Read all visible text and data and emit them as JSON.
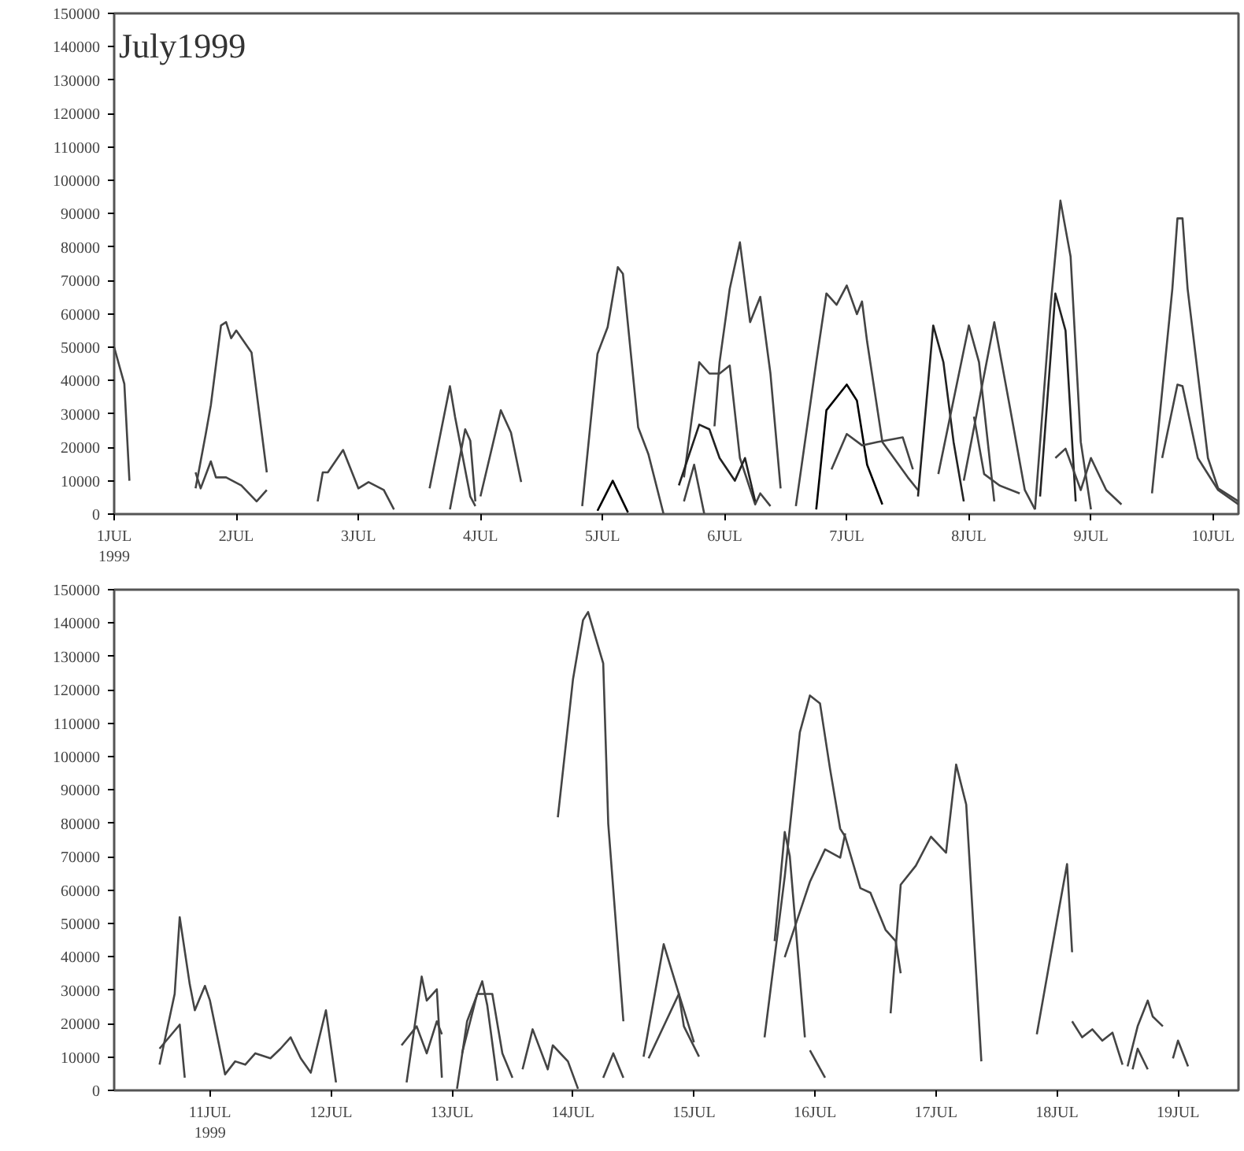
{
  "chart_data": [
    {
      "type": "line",
      "title": "July1999",
      "xlim": [
        "1999-07-01T00:00",
        "1999-07-10T05:00"
      ],
      "ylim": [
        0,
        150000
      ],
      "xticks": [
        {
          "value": "1999-07-01",
          "label": "1JUL\n1999"
        },
        {
          "value": "1999-07-02",
          "label": "2JUL"
        },
        {
          "value": "1999-07-03",
          "label": "3JUL"
        },
        {
          "value": "1999-07-04",
          "label": "4JUL"
        },
        {
          "value": "1999-07-05",
          "label": "5JUL"
        },
        {
          "value": "1999-07-06",
          "label": "6JUL"
        },
        {
          "value": "1999-07-07",
          "label": "7JUL"
        },
        {
          "value": "1999-07-08",
          "label": "8JUL"
        },
        {
          "value": "1999-07-09",
          "label": "9JUL"
        },
        {
          "value": "1999-07-10",
          "label": "10JUL"
        }
      ],
      "yticks": [
        0,
        10000,
        20000,
        30000,
        40000,
        50000,
        60000,
        70000,
        80000,
        90000,
        100000,
        110000,
        120000,
        130000,
        140000,
        150000
      ],
      "grid": false,
      "marker": "none",
      "line_style": "solid",
      "series": [
        {
          "color": "#444444",
          "x": [
            "1999-07-01T00:00",
            "1999-07-01T02:00",
            "1999-07-01T03:00"
          ],
          "values": [
            50000,
            39000,
            10000
          ]
        },
        {
          "color": "#444444",
          "x": [
            "1999-07-01T16:00",
            "1999-07-01T18:00",
            "1999-07-01T19:00",
            "1999-07-01T21:00",
            "1999-07-01T22:00",
            "1999-07-01T23:00",
            "1999-07-02T00:00",
            "1999-07-02T03:00",
            "1999-07-02T06:00"
          ],
          "values": [
            7700,
            24000,
            32600,
            56500,
            57500,
            52700,
            55000,
            48400,
            12500
          ]
        },
        {
          "color": "#444444",
          "x": [
            "1999-07-01T16:00",
            "1999-07-01T17:00",
            "1999-07-01T19:00",
            "1999-07-01T20:00",
            "1999-07-01T22:00",
            "1999-07-02T01:00",
            "1999-07-02T04:00",
            "1999-07-02T06:00"
          ],
          "values": [
            12500,
            7700,
            15800,
            11000,
            11000,
            8600,
            3800,
            7200
          ]
        },
        {
          "color": "#444444",
          "x": [
            "1999-07-02T16:00",
            "1999-07-02T17:00",
            "1999-07-02T18:00",
            "1999-07-02T21:00",
            "1999-07-03T00:00",
            "1999-07-03T02:00",
            "1999-07-03T05:00",
            "1999-07-03T07:00"
          ],
          "values": [
            3800,
            12500,
            12500,
            19200,
            7700,
            9600,
            7200,
            1400
          ]
        },
        {
          "color": "#444444",
          "x": [
            "1999-07-03T14:00",
            "1999-07-03T18:00",
            "1999-07-03T19:00",
            "1999-07-03T22:00",
            "1999-07-03T23:00"
          ],
          "values": [
            7700,
            38300,
            29200,
            5300,
            2400
          ]
        },
        {
          "color": "#444444",
          "x": [
            "1999-07-03T18:00",
            "1999-07-03T21:00",
            "1999-07-03T22:00",
            "1999-07-03T23:00"
          ],
          "values": [
            1400,
            25400,
            22000,
            3800
          ]
        },
        {
          "color": "#444444",
          "x": [
            "1999-07-04T00:00",
            "1999-07-04T04:00",
            "1999-07-04T06:00",
            "1999-07-04T08:00"
          ],
          "values": [
            5300,
            31100,
            24400,
            9600
          ]
        },
        {
          "color": "#444444",
          "x": [
            "1999-07-04T20:00",
            "1999-07-04T23:00",
            "1999-07-05T01:00",
            "1999-07-05T03:00",
            "1999-07-05T04:00",
            "1999-07-05T07:00",
            "1999-07-05T09:00",
            "1999-07-05T12:00"
          ],
          "values": [
            2400,
            48000,
            56000,
            74000,
            72000,
            26000,
            18000,
            0
          ]
        },
        {
          "color": "#000000",
          "x": [
            "1999-07-04T23:00",
            "1999-07-05T02:00",
            "1999-07-05T05:00"
          ],
          "values": [
            1000,
            10000,
            500
          ]
        },
        {
          "color": "#444444",
          "x": [
            "1999-07-05T22:00",
            "1999-07-05T23:00",
            "1999-07-06T01:00",
            "1999-07-06T03:00",
            "1999-07-06T05:00",
            "1999-07-06T07:00",
            "1999-07-06T09:00",
            "1999-07-06T11:00"
          ],
          "values": [
            26300,
            45500,
            67500,
            81400,
            57500,
            65100,
            42100,
            7700
          ]
        },
        {
          "color": "#444444",
          "x": [
            "1999-07-05T16:00",
            "1999-07-05T19:00",
            "1999-07-05T21:00",
            "1999-07-05T23:00",
            "1999-07-06T01:00",
            "1999-07-06T03:00",
            "1999-07-06T06:00",
            "1999-07-06T07:00",
            "1999-07-06T09:00"
          ],
          "values": [
            11000,
            45500,
            42100,
            42100,
            44500,
            16800,
            2900,
            6200,
            2400
          ]
        },
        {
          "color": "#222222",
          "x": [
            "1999-07-05T15:00",
            "1999-07-05T19:00",
            "1999-07-05T21:00",
            "1999-07-05T23:00",
            "1999-07-06T02:00",
            "1999-07-06T04:00",
            "1999-07-06T06:00"
          ],
          "values": [
            8600,
            26800,
            25400,
            16800,
            10000,
            16800,
            3800
          ]
        },
        {
          "color": "#444444",
          "x": [
            "1999-07-05T16:00",
            "1999-07-05T18:00",
            "1999-07-05T20:00"
          ],
          "values": [
            3800,
            14800,
            0
          ]
        },
        {
          "color": "#444444",
          "x": [
            "1999-07-06T14:00",
            "1999-07-06T18:00",
            "1999-07-06T20:00",
            "1999-07-06T22:00",
            "1999-07-07T00:00",
            "1999-07-07T02:00",
            "1999-07-07T03:00",
            "1999-07-07T04:00",
            "1999-07-07T07:00",
            "1999-07-07T12:00",
            "1999-07-07T14:00"
          ],
          "values": [
            2400,
            45500,
            66100,
            62700,
            68500,
            59900,
            63700,
            51700,
            21600,
            11000,
            7200
          ]
        },
        {
          "color": "#000000",
          "x": [
            "1999-07-06T18:00",
            "1999-07-06T20:00",
            "1999-07-07T00:00",
            "1999-07-07T02:00",
            "1999-07-07T04:00",
            "1999-07-07T07:00"
          ],
          "values": [
            1400,
            31100,
            38800,
            34000,
            14800,
            2900
          ]
        },
        {
          "color": "#444444",
          "x": [
            "1999-07-06T21:00",
            "1999-07-07T00:00",
            "1999-07-07T03:00",
            "1999-07-07T06:00",
            "1999-07-07T11:00",
            "1999-07-07T13:00"
          ],
          "values": [
            13400,
            24000,
            20600,
            21600,
            23000,
            13400
          ]
        },
        {
          "color": "#222222",
          "x": [
            "1999-07-07T14:00",
            "1999-07-07T17:00",
            "1999-07-07T19:00",
            "1999-07-07T21:00",
            "1999-07-07T23:00"
          ],
          "values": [
            5300,
            56500,
            45500,
            21600,
            3800
          ]
        },
        {
          "color": "#444444",
          "x": [
            "1999-07-07T18:00",
            "1999-07-08T00:00",
            "1999-07-08T02:00",
            "1999-07-08T05:00"
          ],
          "values": [
            12000,
            56500,
            45500,
            3800
          ]
        },
        {
          "color": "#444444",
          "x": [
            "1999-07-07T23:00",
            "1999-07-08T05:00",
            "1999-07-08T08:00",
            "1999-07-08T11:00",
            "1999-07-08T13:00"
          ],
          "values": [
            10000,
            57500,
            32600,
            7200,
            1400
          ]
        },
        {
          "color": "#444444",
          "x": [
            "1999-07-08T01:00",
            "1999-07-08T03:00",
            "1999-07-08T06:00",
            "1999-07-08T10:00"
          ],
          "values": [
            29200,
            12000,
            8600,
            6200
          ]
        },
        {
          "color": "#444444",
          "x": [
            "1999-07-08T13:00",
            "1999-07-08T16:00",
            "1999-07-08T18:00",
            "1999-07-08T20:00",
            "1999-07-08T22:00",
            "1999-07-09T00:00"
          ],
          "values": [
            1400,
            61300,
            93900,
            77100,
            21600,
            1400
          ]
        },
        {
          "color": "#222222",
          "x": [
            "1999-07-08T14:00",
            "1999-07-08T17:00",
            "1999-07-08T19:00",
            "1999-07-08T21:00"
          ],
          "values": [
            5300,
            66100,
            55000,
            3800
          ]
        },
        {
          "color": "#444444",
          "x": [
            "1999-07-08T17:00",
            "1999-07-08T19:00",
            "1999-07-08T22:00",
            "1999-07-09T00:00",
            "1999-07-09T03:00",
            "1999-07-09T06:00"
          ],
          "values": [
            16800,
            19600,
            7200,
            16800,
            7200,
            2900
          ]
        },
        {
          "color": "#444444",
          "x": [
            "1999-07-09T12:00",
            "1999-07-09T16:00",
            "1999-07-09T17:00",
            "1999-07-09T18:00",
            "1999-07-09T19:00",
            "1999-07-09T23:00",
            "1999-07-10T01:00",
            "1999-07-10T05:00"
          ],
          "values": [
            6200,
            67500,
            88600,
            88600,
            67500,
            16800,
            7700,
            3800
          ]
        },
        {
          "color": "#444444",
          "x": [
            "1999-07-09T14:00",
            "1999-07-09T17:00",
            "1999-07-09T18:00",
            "1999-07-09T21:00",
            "1999-07-10T01:00",
            "1999-07-10T05:00"
          ],
          "values": [
            16800,
            38800,
            38300,
            16800,
            7200,
            2900
          ]
        }
      ]
    },
    {
      "type": "line",
      "xlim": [
        "1999-07-10T05:00",
        "1999-07-19T12:00"
      ],
      "ylim": [
        0,
        150000
      ],
      "xticks": [
        {
          "value": "1999-07-11",
          "label": "11JUL\n1999"
        },
        {
          "value": "1999-07-12",
          "label": "12JUL"
        },
        {
          "value": "1999-07-13",
          "label": "13JUL"
        },
        {
          "value": "1999-07-14",
          "label": "14JUL"
        },
        {
          "value": "1999-07-15",
          "label": "15JUL"
        },
        {
          "value": "1999-07-16",
          "label": "16JUL"
        },
        {
          "value": "1999-07-17",
          "label": "17JUL"
        },
        {
          "value": "1999-07-18",
          "label": "18JUL"
        },
        {
          "value": "1999-07-19",
          "label": "19JUL"
        }
      ],
      "yticks": [
        0,
        10000,
        20000,
        30000,
        40000,
        50000,
        60000,
        70000,
        80000,
        90000,
        100000,
        110000,
        120000,
        130000,
        140000,
        150000
      ],
      "grid": false,
      "marker": "none",
      "line_style": "solid",
      "series": [
        {
          "color": "#444444",
          "x": [
            "1999-07-10T14:00",
            "1999-07-10T17:00",
            "1999-07-10T18:00",
            "1999-07-10T20:00",
            "1999-07-10T21:00",
            "1999-07-10T23:00",
            "1999-07-11T00:00",
            "1999-07-11T03:00",
            "1999-07-11T05:00",
            "1999-07-11T07:00",
            "1999-07-11T09:00",
            "1999-07-11T12:00",
            "1999-07-11T14:00",
            "1999-07-11T16:00",
            "1999-07-11T18:00",
            "1999-07-11T20:00",
            "1999-07-11T23:00",
            "1999-07-12T01:00"
          ],
          "values": [
            7700,
            28900,
            51900,
            31700,
            24000,
            31300,
            26900,
            4800,
            8700,
            7700,
            11100,
            9600,
            12500,
            15900,
            9600,
            5300,
            24000,
            2400
          ]
        },
        {
          "color": "#444444",
          "x": [
            "1999-07-10T14:00",
            "1999-07-10T18:00",
            "1999-07-10T19:00"
          ],
          "values": [
            12500,
            19700,
            3800
          ]
        },
        {
          "color": "#444444",
          "x": [
            "1999-07-12T15:00",
            "1999-07-12T18:00",
            "1999-07-12T19:00",
            "1999-07-12T21:00",
            "1999-07-12T22:00"
          ],
          "values": [
            2400,
            34100,
            26900,
            30300,
            3800
          ]
        },
        {
          "color": "#444444",
          "x": [
            "1999-07-12T14:00",
            "1999-07-12T17:00",
            "1999-07-12T19:00",
            "1999-07-12T21:00",
            "1999-07-12T22:00"
          ],
          "values": [
            13500,
            19200,
            11100,
            20700,
            16800
          ]
        },
        {
          "color": "#444444",
          "x": [
            "1999-07-13T01:00",
            "1999-07-13T03:00",
            "1999-07-13T06:00",
            "1999-07-13T07:00",
            "1999-07-13T09:00"
          ],
          "values": [
            500,
            20700,
            32700,
            25500,
            2900
          ]
        },
        {
          "color": "#444444",
          "x": [
            "1999-07-13T02:00",
            "1999-07-13T05:00",
            "1999-07-13T08:00",
            "1999-07-13T10:00",
            "1999-07-13T12:00"
          ],
          "values": [
            11100,
            28900,
            28900,
            11100,
            3800
          ]
        },
        {
          "color": "#444444",
          "x": [
            "1999-07-13T14:00",
            "1999-07-13T16:00",
            "1999-07-13T19:00",
            "1999-07-13T20:00",
            "1999-07-13T23:00",
            "1999-07-14T01:00"
          ],
          "values": [
            6300,
            18300,
            6300,
            13500,
            8700,
            500
          ]
        },
        {
          "color": "#444444",
          "x": [
            "1999-07-13T21:00",
            "1999-07-14T00:00",
            "1999-07-14T02:00",
            "1999-07-14T03:00",
            "1999-07-14T06:00",
            "1999-07-14T07:00",
            "1999-07-14T10:00"
          ],
          "values": [
            81800,
            123100,
            140900,
            143300,
            127900,
            79800,
            20700
          ]
        },
        {
          "color": "#444444",
          "x": [
            "1999-07-14T06:00",
            "1999-07-14T08:00",
            "1999-07-14T10:00"
          ],
          "values": [
            3800,
            11100,
            3800
          ]
        },
        {
          "color": "#444444",
          "x": [
            "1999-07-14T14:00",
            "1999-07-14T18:00",
            "1999-07-14T21:00",
            "1999-07-14T22:00",
            "1999-07-15T01:00"
          ],
          "values": [
            10100,
            43800,
            28900,
            19200,
            10100
          ]
        },
        {
          "color": "#444444",
          "x": [
            "1999-07-14T15:00",
            "1999-07-14T21:00",
            "1999-07-14T23:00",
            "1999-07-15T00:00"
          ],
          "values": [
            9600,
            28900,
            19200,
            14400
          ]
        },
        {
          "color": "#444444",
          "x": [
            "1999-07-15T14:00",
            "1999-07-15T18:00",
            "1999-07-15T21:00",
            "1999-07-15T23:00",
            "1999-07-16T01:00",
            "1999-07-16T03:00",
            "1999-07-16T05:00",
            "1999-07-16T06:00",
            "1999-07-16T09:00",
            "1999-07-16T11:00",
            "1999-07-16T14:00",
            "1999-07-16T16:00",
            "1999-07-16T17:00"
          ],
          "values": [
            15900,
            64000,
            107300,
            118300,
            115900,
            96200,
            78400,
            76000,
            60600,
            59200,
            48100,
            44700,
            35100
          ]
        },
        {
          "color": "#444444",
          "x": [
            "1999-07-15T16:00",
            "1999-07-15T18:00",
            "1999-07-15T19:00",
            "1999-07-15T22:00"
          ],
          "values": [
            44700,
            77400,
            70200,
            15900
          ]
        },
        {
          "color": "#444444",
          "x": [
            "1999-07-15T18:00",
            "1999-07-15T23:00",
            "1999-07-16T02:00",
            "1999-07-16T05:00",
            "1999-07-16T06:00"
          ],
          "values": [
            39900,
            62500,
            72200,
            69700,
            77000
          ]
        },
        {
          "color": "#444444",
          "x": [
            "1999-07-15T23:00",
            "1999-07-16T02:00"
          ],
          "values": [
            12000,
            3800
          ]
        },
        {
          "color": "#444444",
          "x": [
            "1999-07-16T15:00",
            "1999-07-16T17:00",
            "1999-07-16T20:00",
            "1999-07-16T23:00",
            "1999-07-17T02:00",
            "1999-07-17T04:00",
            "1999-07-17T06:00",
            "1999-07-17T09:00"
          ],
          "values": [
            23100,
            61600,
            67300,
            76000,
            71200,
            97600,
            85600,
            8700
          ]
        },
        {
          "color": "#444444",
          "x": [
            "1999-07-17T20:00",
            "1999-07-18T00:00",
            "1999-07-18T02:00",
            "1999-07-18T03:00"
          ],
          "values": [
            16800,
            51000,
            67800,
            41400
          ]
        },
        {
          "color": "#444444",
          "x": [
            "1999-07-18T03:00",
            "1999-07-18T05:00",
            "1999-07-18T07:00",
            "1999-07-18T09:00",
            "1999-07-18T11:00",
            "1999-07-18T13:00"
          ],
          "values": [
            20700,
            15900,
            18300,
            14900,
            17300,
            7700
          ]
        },
        {
          "color": "#444444",
          "x": [
            "1999-07-18T14:00",
            "1999-07-18T16:00",
            "1999-07-18T18:00",
            "1999-07-18T19:00",
            "1999-07-18T21:00"
          ],
          "values": [
            7200,
            19200,
            26900,
            22100,
            19200
          ]
        },
        {
          "color": "#444444",
          "x": [
            "1999-07-18T15:00",
            "1999-07-18T16:00",
            "1999-07-18T18:00"
          ],
          "values": [
            6300,
            12500,
            6300
          ]
        },
        {
          "color": "#444444",
          "x": [
            "1999-07-18T23:00",
            "1999-07-19T00:00",
            "1999-07-19T02:00"
          ],
          "values": [
            9600,
            14900,
            7200
          ]
        }
      ]
    }
  ]
}
